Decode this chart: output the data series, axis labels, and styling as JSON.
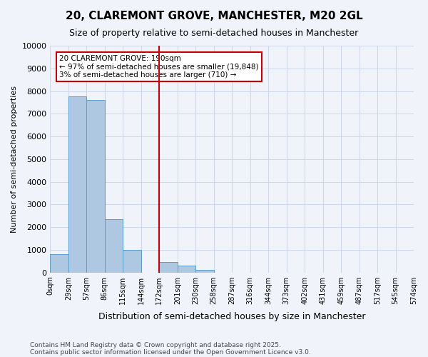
{
  "title": "20, CLAREMONT GROVE, MANCHESTER, M20 2GL",
  "subtitle": "Size of property relative to semi-detached houses in Manchester",
  "xlabel": "Distribution of semi-detached houses by size in Manchester",
  "ylabel": "Number of semi-detached properties",
  "bin_labels": [
    "0sqm",
    "29sqm",
    "57sqm",
    "86sqm",
    "115sqm",
    "144sqm",
    "172sqm",
    "201sqm",
    "230sqm",
    "258sqm",
    "287sqm",
    "316sqm",
    "344sqm",
    "373sqm",
    "402sqm",
    "431sqm",
    "459sqm",
    "487sqm",
    "517sqm",
    "545sqm",
    "574sqm"
  ],
  "bar_values": [
    800,
    7750,
    7600,
    2350,
    1000,
    0,
    450,
    300,
    100,
    0,
    0,
    0,
    0,
    0,
    0,
    0,
    0,
    0,
    0,
    0
  ],
  "bar_color": "#adc8e0",
  "bar_edgecolor": "#5a9ec9",
  "grid_color": "#d0d8e8",
  "property_line_x": 6,
  "property_line_color": "#cc0000",
  "annotation_text": "20 CLAREMONT GROVE: 190sqm\n← 97% of semi-detached houses are smaller (19,848)\n3% of semi-detached houses are larger (710) →",
  "annotation_box_color": "#ffffff",
  "annotation_box_edgecolor": "#cc0000",
  "ylim": [
    0,
    10000
  ],
  "yticks": [
    0,
    1000,
    2000,
    3000,
    4000,
    5000,
    6000,
    7000,
    8000,
    9000,
    10000
  ],
  "footnote1": "Contains HM Land Registry data © Crown copyright and database right 2025.",
  "footnote2": "Contains public sector information licensed under the Open Government Licence v3.0.",
  "bg_color": "#f0f4fa"
}
